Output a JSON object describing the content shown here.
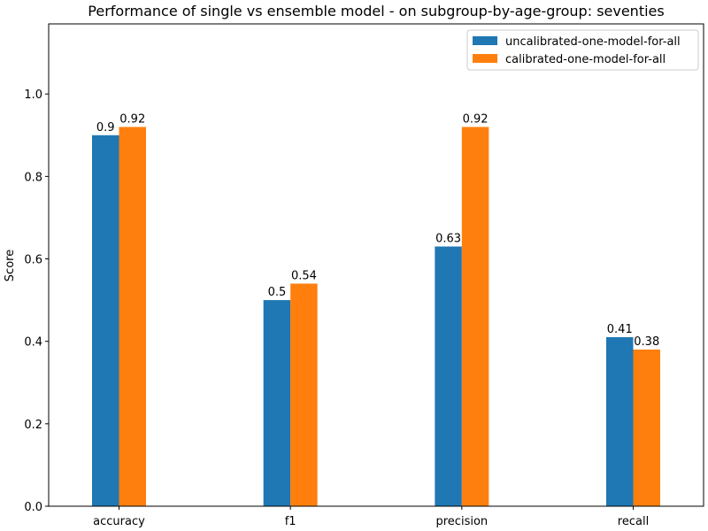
{
  "chart_data": {
    "type": "bar",
    "title": "Performance of single vs ensemble model - on subgroup-by-age-group: seventies",
    "xlabel": "",
    "ylabel": "Score",
    "categories": [
      "accuracy",
      "f1",
      "precision",
      "recall"
    ],
    "series": [
      {
        "name": "uncalibrated-one-model-for-all",
        "color": "#1f77b4",
        "values": [
          0.9,
          0.5,
          0.63,
          0.41
        ]
      },
      {
        "name": "calibrated-one-model-for-all",
        "color": "#ff7f0e",
        "values": [
          0.92,
          0.54,
          0.92,
          0.38
        ]
      }
    ],
    "ylim": [
      0,
      1.17
    ],
    "yticks": [
      0.0,
      0.2,
      0.4,
      0.6,
      0.8,
      1.0
    ],
    "ytick_labels": [
      "0.0",
      "0.2",
      "0.4",
      "0.6",
      "0.8",
      "1.0"
    ],
    "data_labels": [
      [
        "0.9",
        "0.5",
        "0.63",
        "0.41"
      ],
      [
        "0.92",
        "0.54",
        "0.92",
        "0.38"
      ]
    ],
    "legend_position": "top-right",
    "grid": false
  }
}
